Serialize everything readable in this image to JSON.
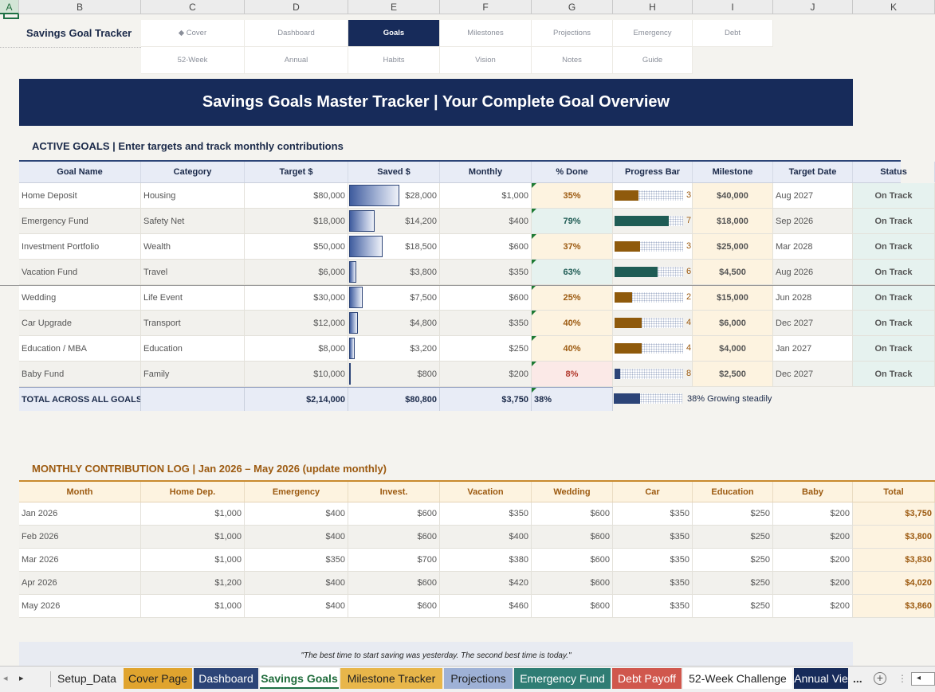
{
  "columns": [
    "A",
    "B",
    "C",
    "D",
    "E",
    "F",
    "G",
    "H",
    "I",
    "J",
    "K"
  ],
  "brand": "Savings Goal Tracker",
  "nav": {
    "row1": [
      {
        "label": "◆ Cover",
        "active": false
      },
      {
        "label": "Dashboard",
        "active": false
      },
      {
        "label": "Goals",
        "active": true
      },
      {
        "label": "Milestones",
        "active": false
      },
      {
        "label": "Projections",
        "active": false
      },
      {
        "label": "Emergency",
        "active": false
      },
      {
        "label": "Debt",
        "active": false
      }
    ],
    "row2": [
      "52-Week",
      "Annual",
      "Habits",
      "Vision",
      "Notes",
      "Guide"
    ]
  },
  "banner": "Savings Goals Master Tracker  |  Your Complete Goal Overview",
  "goals": {
    "title": "ACTIVE GOALS  |  Enter targets and track monthly contributions",
    "headers": [
      "Goal Name",
      "Category",
      "Target $",
      "Saved $",
      "Monthly",
      "% Done",
      "Progress Bar",
      "Milestone",
      "Target Date",
      "Status"
    ],
    "rows": [
      {
        "name": "Home Deposit",
        "category": "Housing",
        "target": "$80,000",
        "saved": "$28,000",
        "saved_fraction": 0.56,
        "monthly": "$1,000",
        "pct": "35%",
        "pct_value": 0.35,
        "tone": "amber",
        "bar_digit": "3",
        "milestone": "$40,000",
        "date": "Aug 2027",
        "status": "On Track"
      },
      {
        "name": "Emergency Fund",
        "category": "Safety Net",
        "target": "$18,000",
        "saved": "$14,200",
        "saved_fraction": 0.284,
        "monthly": "$400",
        "pct": "79%",
        "pct_value": 0.79,
        "tone": "teal",
        "bar_digit": "7",
        "milestone": "$18,000",
        "date": "Sep 2026",
        "status": "On Track"
      },
      {
        "name": "Investment Portfolio",
        "category": "Wealth",
        "target": "$50,000",
        "saved": "$18,500",
        "saved_fraction": 0.37,
        "monthly": "$600",
        "pct": "37%",
        "pct_value": 0.37,
        "tone": "amber",
        "bar_digit": "3",
        "milestone": "$25,000",
        "date": "Mar 2028",
        "status": "On Track"
      },
      {
        "name": "Vacation Fund",
        "category": "Travel",
        "target": "$6,000",
        "saved": "$3,800",
        "saved_fraction": 0.076,
        "monthly": "$350",
        "pct": "63%",
        "pct_value": 0.63,
        "tone": "teal",
        "bar_digit": "6",
        "milestone": "$4,500",
        "date": "Aug 2026",
        "status": "On Track"
      },
      {
        "name": "Wedding",
        "category": "Life Event",
        "target": "$30,000",
        "saved": "$7,500",
        "saved_fraction": 0.15,
        "monthly": "$600",
        "pct": "25%",
        "pct_value": 0.25,
        "tone": "amber",
        "bar_digit": "2",
        "milestone": "$15,000",
        "date": "Jun 2028",
        "status": "On Track"
      },
      {
        "name": "Car Upgrade",
        "category": "Transport",
        "target": "$12,000",
        "saved": "$4,800",
        "saved_fraction": 0.096,
        "monthly": "$350",
        "pct": "40%",
        "pct_value": 0.4,
        "tone": "amber",
        "bar_digit": "4",
        "milestone": "$6,000",
        "date": "Dec 2027",
        "status": "On Track"
      },
      {
        "name": "Education / MBA",
        "category": "Education",
        "target": "$8,000",
        "saved": "$3,200",
        "saved_fraction": 0.064,
        "monthly": "$250",
        "pct": "40%",
        "pct_value": 0.4,
        "tone": "amber",
        "bar_digit": "4",
        "milestone": "$4,000",
        "date": "Jan 2027",
        "status": "On Track"
      },
      {
        "name": "Baby Fund",
        "category": "Family",
        "target": "$10,000",
        "saved": "$800",
        "saved_fraction": 0.016,
        "monthly": "$200",
        "pct": "8%",
        "pct_value": 0.08,
        "tone": "red",
        "bar_digit": "8",
        "milestone": "$2,500",
        "date": "Dec 2027",
        "status": "On Track"
      }
    ],
    "total": {
      "label": "TOTAL ACROSS ALL GOALS",
      "target": "$2,14,000",
      "saved": "$80,800",
      "monthly": "$3,750",
      "pct": "38%",
      "pct_value": 0.38,
      "note": "38%  Growing steadily"
    }
  },
  "contrib": {
    "title": "MONTHLY CONTRIBUTION LOG  |  Jan 2026 – May 2026  (update monthly)",
    "headers": [
      "Month",
      "Home Dep.",
      "Emergency",
      "Invest.",
      "Vacation",
      "Wedding",
      "Car",
      "Education",
      "Baby",
      "Total"
    ],
    "rows": [
      [
        "Jan 2026",
        "$1,000",
        "$400",
        "$600",
        "$350",
        "$600",
        "$350",
        "$250",
        "$200",
        "$3,750"
      ],
      [
        "Feb 2026",
        "$1,000",
        "$400",
        "$600",
        "$400",
        "$600",
        "$350",
        "$250",
        "$200",
        "$3,800"
      ],
      [
        "Mar 2026",
        "$1,000",
        "$350",
        "$700",
        "$380",
        "$600",
        "$350",
        "$250",
        "$200",
        "$3,830"
      ],
      [
        "Apr 2026",
        "$1,200",
        "$400",
        "$600",
        "$420",
        "$600",
        "$350",
        "$250",
        "$200",
        "$4,020"
      ],
      [
        "May 2026",
        "$1,000",
        "$400",
        "$600",
        "$460",
        "$600",
        "$350",
        "$250",
        "$200",
        "$3,860"
      ]
    ]
  },
  "quote": "\"The best time to start saving was yesterday. The second best time is today.\"",
  "tabs": [
    {
      "label": "Setup_Data",
      "bg": "#f0f0f0",
      "fg": "#222"
    },
    {
      "label": "Cover Page",
      "bg": "#e0a42e",
      "fg": "#222"
    },
    {
      "label": "Dashboard",
      "bg": "#2c4477",
      "fg": "#ffffff"
    },
    {
      "label": "Savings Goals",
      "bg": "#ffffff",
      "fg": "#1e6b3a"
    },
    {
      "label": "Milestone Tracker",
      "bg": "#e8b64a",
      "fg": "#222"
    },
    {
      "label": "Projections",
      "bg": "#9eb1d6",
      "fg": "#222"
    },
    {
      "label": "Emergency Fund",
      "bg": "#2f7d74",
      "fg": "#ffffff"
    },
    {
      "label": "Debt Payoff",
      "bg": "#d0574d",
      "fg": "#ffffff"
    },
    {
      "label": "52-Week Challenge",
      "bg": "#ffffff",
      "fg": "#222"
    },
    {
      "label": "Annual Vie",
      "bg": "#172b5a",
      "fg": "#ffffff"
    }
  ],
  "tab_more": "...",
  "tab_add": "+",
  "colors": {
    "navy": "#172b5a",
    "amber_fill": "#8f5a0c",
    "teal_fill": "#1f5c55",
    "blue_fill": "#2c4477"
  },
  "icons": [
    "nav-left-arrow-icon",
    "nav-right-arrow-icon",
    "add-sheet-icon",
    "more-options-icon",
    "scroll-left-icon"
  ]
}
